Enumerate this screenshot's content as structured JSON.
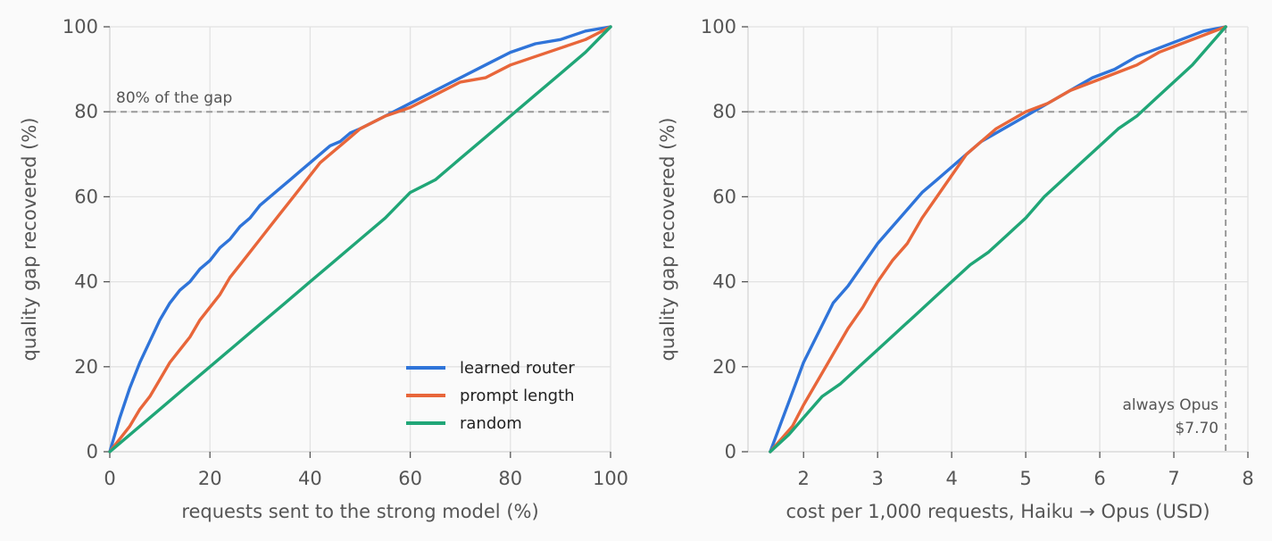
{
  "chart_data": [
    {
      "type": "line",
      "xlabel": "requests sent to the strong model (%)",
      "ylabel": "quality gap recovered (%)",
      "xlim": [
        0,
        100
      ],
      "ylim": [
        0,
        100
      ],
      "xticks": [
        0,
        20,
        40,
        60,
        80,
        100
      ],
      "yticks": [
        0,
        20,
        40,
        60,
        80,
        100
      ],
      "grid": true,
      "legend_position": "lower-right",
      "reference_line": {
        "y": 80,
        "label": "80% of the gap"
      },
      "series": [
        {
          "name": "learned router",
          "color": "#2f74d9",
          "x": [
            0,
            2,
            4,
            6,
            8,
            10,
            12,
            14,
            16,
            18,
            20,
            22,
            24,
            26,
            28,
            30,
            32,
            34,
            36,
            38,
            40,
            42,
            44,
            46,
            48,
            50,
            55,
            60,
            65,
            70,
            75,
            80,
            85,
            90,
            95,
            100
          ],
          "y": [
            0,
            8,
            15,
            21,
            26,
            31,
            35,
            38,
            40,
            43,
            45,
            48,
            50,
            53,
            55,
            58,
            60,
            62,
            64,
            66,
            68,
            70,
            72,
            73,
            75,
            76,
            79,
            82,
            85,
            88,
            91,
            94,
            96,
            97,
            99,
            100
          ]
        },
        {
          "name": "prompt length",
          "color": "#e8663a",
          "x": [
            0,
            2,
            4,
            6,
            8,
            10,
            12,
            14,
            16,
            18,
            20,
            22,
            24,
            26,
            28,
            30,
            32,
            34,
            36,
            38,
            40,
            42,
            44,
            46,
            48,
            50,
            55,
            60,
            65,
            70,
            75,
            80,
            85,
            90,
            95,
            100
          ],
          "y": [
            0,
            3,
            6,
            10,
            13,
            17,
            21,
            24,
            27,
            31,
            34,
            37,
            41,
            44,
            47,
            50,
            53,
            56,
            59,
            62,
            65,
            68,
            70,
            72,
            74,
            76,
            79,
            81,
            84,
            87,
            88,
            91,
            93,
            95,
            97,
            100
          ]
        },
        {
          "name": "random",
          "color": "#20a677",
          "x": [
            0,
            5,
            10,
            15,
            20,
            25,
            30,
            35,
            40,
            45,
            50,
            55,
            60,
            65,
            70,
            75,
            80,
            85,
            90,
            95,
            100
          ],
          "y": [
            0,
            5,
            10,
            15,
            20,
            25,
            30,
            35,
            40,
            45,
            50,
            55,
            61,
            64,
            69,
            74,
            79,
            84,
            89,
            94,
            100
          ]
        }
      ]
    },
    {
      "type": "line",
      "xlabel": "cost per 1,000 requests, Haiku → Opus (USD)",
      "ylabel": "quality gap recovered (%)",
      "xlim": [
        1.25,
        8
      ],
      "ylim": [
        0,
        100
      ],
      "xticks": [
        2,
        3,
        4,
        5,
        6,
        7,
        8
      ],
      "yticks": [
        0,
        20,
        40,
        60,
        80,
        100
      ],
      "grid": true,
      "reference_line": {
        "y": 80
      },
      "vertical_line": {
        "x": 7.7,
        "label_lines": [
          "always Opus",
          "$7.70"
        ]
      },
      "series": [
        {
          "name": "learned router",
          "color": "#2f74d9",
          "x": [
            1.55,
            1.7,
            1.85,
            2.0,
            2.2,
            2.4,
            2.6,
            2.8,
            3.0,
            3.2,
            3.4,
            3.6,
            3.8,
            4.0,
            4.2,
            4.4,
            4.6,
            4.8,
            5.0,
            5.3,
            5.6,
            5.9,
            6.2,
            6.5,
            6.8,
            7.1,
            7.4,
            7.7
          ],
          "y": [
            0,
            7,
            14,
            21,
            28,
            35,
            39,
            44,
            49,
            53,
            57,
            61,
            64,
            67,
            70,
            73,
            75,
            77,
            79,
            82,
            85,
            88,
            90,
            93,
            95,
            97,
            99,
            100
          ]
        },
        {
          "name": "prompt length",
          "color": "#e8663a",
          "x": [
            1.55,
            1.7,
            1.85,
            2.0,
            2.2,
            2.4,
            2.6,
            2.8,
            3.0,
            3.2,
            3.4,
            3.6,
            3.8,
            4.0,
            4.2,
            4.4,
            4.6,
            4.8,
            5.0,
            5.3,
            5.6,
            5.9,
            6.2,
            6.5,
            6.8,
            7.1,
            7.4,
            7.7
          ],
          "y": [
            0,
            3,
            6,
            11,
            17,
            23,
            29,
            34,
            40,
            45,
            49,
            55,
            60,
            65,
            70,
            73,
            76,
            78,
            80,
            82,
            85,
            87,
            89,
            91,
            94,
            96,
            98,
            100
          ]
        },
        {
          "name": "random",
          "color": "#20a677",
          "x": [
            1.55,
            1.8,
            2.0,
            2.25,
            2.5,
            2.75,
            3.0,
            3.25,
            3.5,
            3.75,
            4.0,
            4.25,
            4.5,
            4.75,
            5.0,
            5.25,
            5.5,
            5.75,
            6.0,
            6.25,
            6.5,
            6.75,
            7.0,
            7.25,
            7.5,
            7.7
          ],
          "y": [
            0,
            4,
            8,
            13,
            16,
            20,
            24,
            28,
            32,
            36,
            40,
            44,
            47,
            51,
            55,
            60,
            64,
            68,
            72,
            76,
            79,
            83,
            87,
            91,
            96,
            100
          ]
        }
      ]
    }
  ]
}
